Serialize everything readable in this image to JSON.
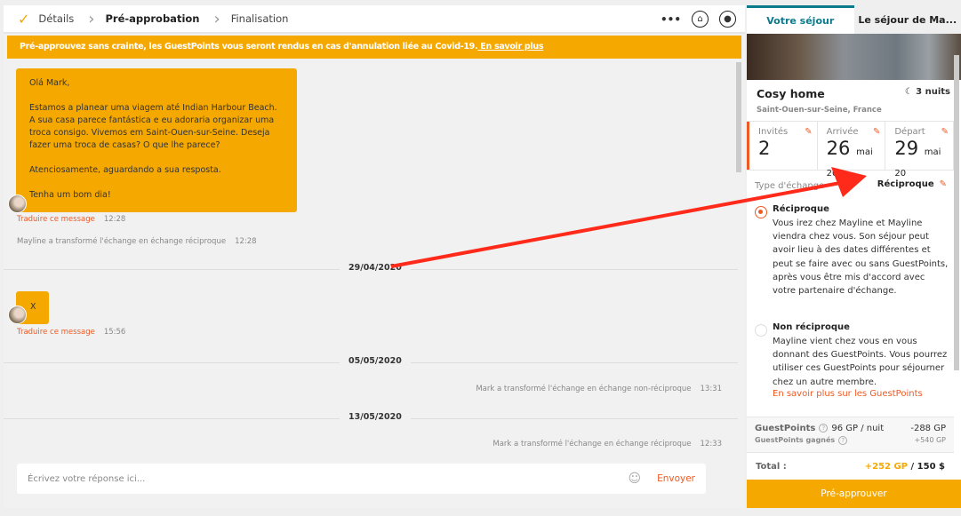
{
  "steps": [
    {
      "label": "Détails",
      "state": "done"
    },
    {
      "label": "Pré-approbation",
      "state": "active"
    },
    {
      "label": "Finalisation",
      "state": "pending"
    }
  ],
  "topbar": {
    "more_icon": "more-dots-icon",
    "home_icon": "home-icon",
    "user_icon": "user-icon"
  },
  "banner": {
    "text": "Pré-approuvez sans crainte, les GuestPoints vous seront rendus en cas d'annulation liée au Covid-19.",
    "link": " En savoir plus"
  },
  "chat": {
    "message1": {
      "lines": [
        "Olá Mark,",
        "",
        "Estamos a planear uma viagem até Indian Harbour Beach. A sua casa parece fantástica e eu adoraria organizar uma troca consigo. Vivemos em Saint-Ouen-sur-Seine. Deseja fazer uma troca de casas? O que lhe parece?",
        "",
        "Atenciosamente, aguardando a sua resposta.",
        "",
        "Tenha um bom dia!"
      ],
      "translate": "Traduire ce message",
      "time": "12:28"
    },
    "system1": {
      "text": "Mayline a transformé l'échange en échange réciproque",
      "time": "12:28"
    },
    "date1": "29/04/2020",
    "message2": {
      "text": "X",
      "translate": "Traduire ce message",
      "time": "15:56"
    },
    "date2": "05/05/2020",
    "system2": {
      "text": "Mark a transformé l'échange en échange non-réciproque",
      "time": "13:31"
    },
    "date3": "13/05/2020",
    "system3": {
      "text": "Mark a transformé l'échange en échange réciproque",
      "time": "12:33"
    },
    "reply": {
      "placeholder": "Écrivez votre réponse ici...",
      "send": "Envoyer"
    }
  },
  "sidebar": {
    "tabs": [
      {
        "label": "Votre séjour",
        "active": true
      },
      {
        "label": "Le séjour de Ma..."
      }
    ],
    "title": "Cosy home",
    "nights": "3 nuits",
    "location": "Saint-Ouen-sur-Seine, France",
    "guests": {
      "label": "Invités",
      "value": "2"
    },
    "arrival": {
      "label": "Arrivée",
      "day": "26",
      "month": "mai 20"
    },
    "departure": {
      "label": "Départ",
      "day": "29",
      "month": "mai 20"
    },
    "exchange_type": {
      "label": "Type d'échange",
      "value": "Réciproque"
    },
    "options": [
      {
        "title": "Réciproque",
        "selected": true,
        "desc": "Vous irez chez Mayline et Mayline viendra chez vous. Son séjour peut avoir lieu à des dates différentes et peut se faire avec ou sans GuestPoints, après vous être mis d'accord avec votre partenaire d'échange."
      },
      {
        "title": "Non réciproque",
        "selected": false,
        "desc": "Mayline vient chez vous en vous donnant des GuestPoints. Vous pourrez utiliser ces GuestPoints pour séjourner chez un autre membre.",
        "link": "En savoir plus sur les GuestPoints"
      }
    ],
    "gp": {
      "label": "GuestPoints",
      "rate": "96 GP / nuit",
      "amount": "-288 GP",
      "earned_label": "GuestPoints gagnés",
      "earned": "+540 GP"
    },
    "total": {
      "label": "Total :",
      "gp": "+252 GP",
      "sep": " / ",
      "usd": "150 $"
    },
    "approve": "Pré-approuver"
  },
  "colors": {
    "accent": "#f5a800",
    "link": "#ee5a24",
    "teal": "#0b7a8c",
    "annotation": "#ff2a1a"
  }
}
